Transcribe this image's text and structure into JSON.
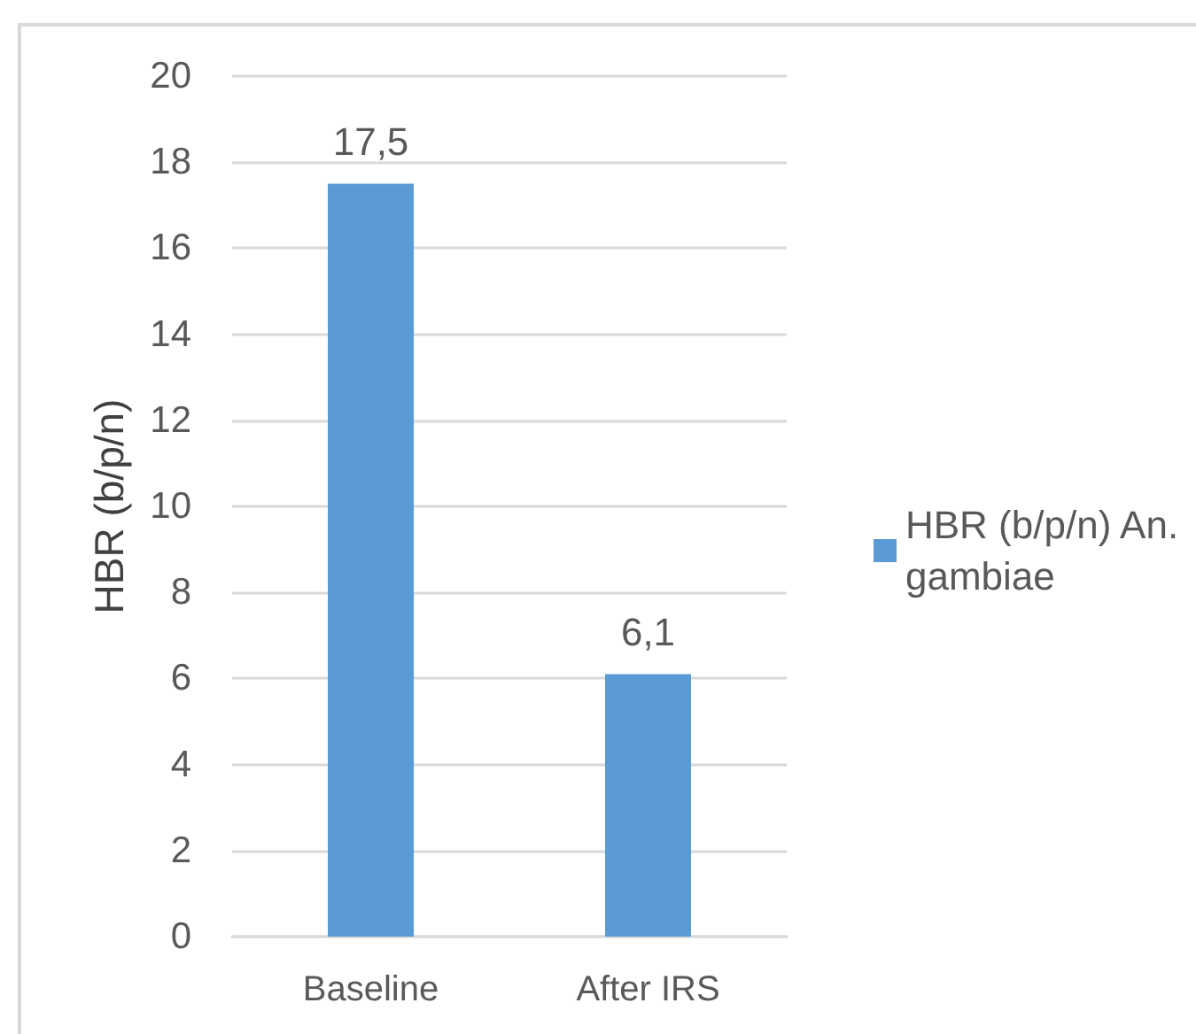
{
  "chart_data": {
    "type": "bar",
    "ylabel": "HBR (b/p/n)",
    "categories": [
      "Baseline",
      "After IRS"
    ],
    "series": [
      {
        "name": "HBR (b/p/n) An. gambiae",
        "color": "#5b9bd5",
        "values": [
          17.5,
          6.1
        ],
        "value_labels": [
          "17,5",
          "6,1"
        ]
      }
    ],
    "ylim": [
      0,
      20
    ],
    "yticks": [
      0,
      2,
      4,
      6,
      8,
      10,
      12,
      14,
      16,
      18,
      20
    ],
    "grid": "y",
    "legend": "right"
  }
}
